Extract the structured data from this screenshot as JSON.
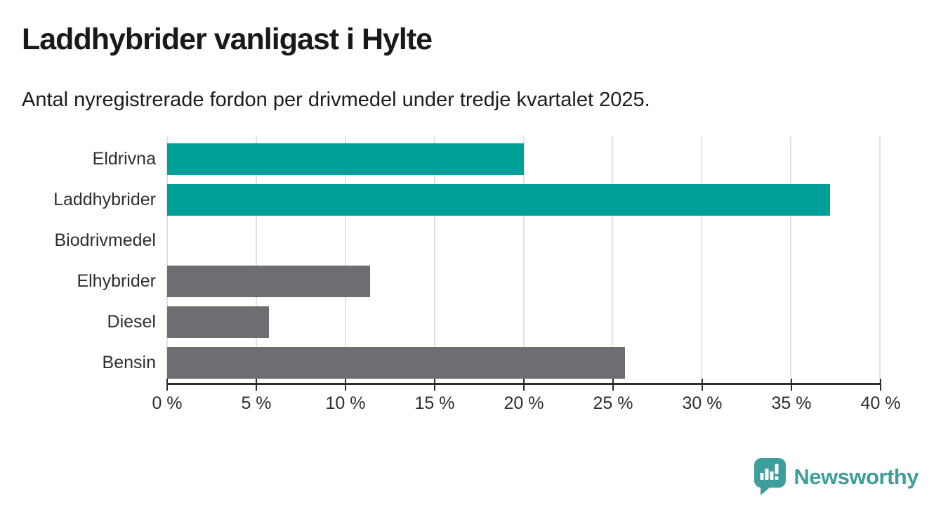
{
  "title": "Laddhybrider vanligast i Hylte",
  "subtitle": "Antal nyregistrerade fordon per drivmedel under tredje kvartalet 2025.",
  "chart_data": {
    "type": "bar",
    "orientation": "horizontal",
    "title": "Laddhybrider vanligast i Hylte",
    "subtitle": "Antal nyregistrerade fordon per drivmedel under tredje kvartalet 2025.",
    "categories": [
      "Eldrivna",
      "Laddhybrider",
      "Biodrivmedel",
      "Elhybrider",
      "Diesel",
      "Bensin"
    ],
    "values": [
      20.0,
      37.2,
      0.0,
      11.4,
      5.7,
      25.7
    ],
    "unit": "%",
    "xlim": [
      0,
      40
    ],
    "x_ticks": [
      0,
      5,
      10,
      15,
      20,
      25,
      30,
      35,
      40
    ],
    "x_tick_labels": [
      "0 %",
      "5 %",
      "10 %",
      "15 %",
      "20 %",
      "25 %",
      "30 %",
      "35 %",
      "40 %"
    ],
    "bar_colors": [
      "#00a099",
      "#00a099",
      "#00a099",
      "#6d6d72",
      "#6d6d72",
      "#6d6d72"
    ],
    "highlight_color": "#00a099",
    "default_color": "#6d6d72",
    "grid": true,
    "gridline_color": "#e1e1e1",
    "axis_color": "#2d2d2d",
    "legend": "none"
  },
  "branding": {
    "logo_text": "Newsworthy",
    "logo_color": "#3d9e9c",
    "logo_icon": "newsworthy-pin-bar-chart-icon"
  }
}
